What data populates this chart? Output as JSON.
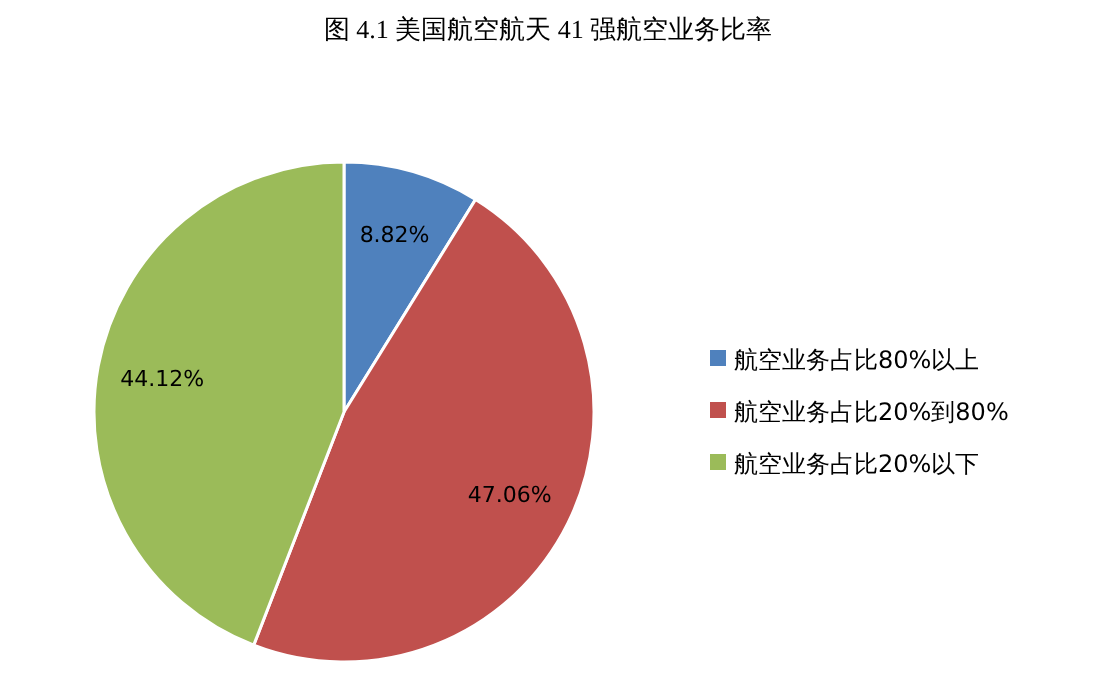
{
  "chart_data": {
    "type": "pie",
    "title": "图 4.1 美国航空航天 41 强航空业务比率",
    "categories": [
      "航空业务占比80%以上",
      "航空业务占比20%到80%",
      "航空业务占比20%以下"
    ],
    "values": [
      8.82,
      47.06,
      44.12
    ],
    "colors": [
      "#4f81bd",
      "#c0504d",
      "#9bbb59"
    ],
    "value_labels": [
      "8.82%",
      "47.06%",
      "44.12%"
    ],
    "legend": "right"
  }
}
